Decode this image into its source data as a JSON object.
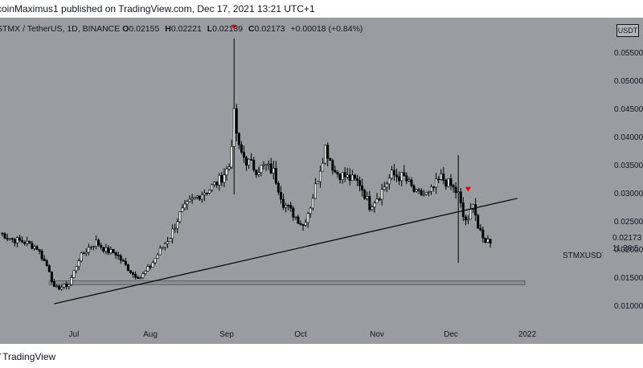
{
  "header": {
    "published": "coinMaximus1 published on TradingView.com, Dec 17, 2021 13:21 UTC+1"
  },
  "legend": {
    "symbol": "STMX / TetherUS, 1D, BINANCE",
    "o_label": "O",
    "o_value": "0.02155",
    "h_label": "H",
    "h_value": "0.02221",
    "l_label": "L",
    "l_value": "0.02139",
    "c_label": "C",
    "c_value": "0.02173",
    "change": "+0.00018 (+0.84%)"
  },
  "price_panel": {
    "currency": "USDT",
    "ticker": "STMXUSDT",
    "last_price": "0.02173",
    "countdown": "11:38:5"
  },
  "footer": {
    "brand": "TradingView"
  },
  "colors": {
    "background": "#9a9ca1",
    "candle": "#000000",
    "marker": "#e50000",
    "zone": "#8a8d93"
  },
  "chart_data": {
    "type": "candlestick",
    "symbol": "STMX / TetherUS",
    "interval": "1D",
    "exchange": "BINANCE",
    "x_tick_labels": [
      "Jul",
      "Aug",
      "Sep",
      "Oct",
      "Nov",
      "Dec",
      "2022"
    ],
    "y_tick_labels": [
      "0.01000",
      "0.01500",
      "0.02000",
      "0.02500",
      "0.03000",
      "0.03500",
      "0.04000",
      "0.04500",
      "0.05000",
      "0.05500"
    ],
    "y_ticks": [
      0.01,
      0.015,
      0.02,
      0.025,
      0.03,
      0.035,
      0.04,
      0.045,
      0.05,
      0.055
    ],
    "ylim": [
      0.0065,
      0.0615
    ],
    "x_range": [
      "2021-06-01",
      "2022-01-31"
    ],
    "grid": false,
    "series_closes": [
      [
        "2021-06-01",
        0.0231
      ],
      [
        "2021-06-06",
        0.022
      ],
      [
        "2021-06-11",
        0.0215
      ],
      [
        "2021-06-16",
        0.0205
      ],
      [
        "2021-06-21",
        0.0165
      ],
      [
        "2021-06-23",
        0.0132
      ],
      [
        "2021-06-26",
        0.0135
      ],
      [
        "2021-06-29",
        0.014
      ],
      [
        "2021-07-03",
        0.0185
      ],
      [
        "2021-07-07",
        0.0205
      ],
      [
        "2021-07-10",
        0.0215
      ],
      [
        "2021-07-14",
        0.02
      ],
      [
        "2021-07-18",
        0.0195
      ],
      [
        "2021-07-21",
        0.0178
      ],
      [
        "2021-07-25",
        0.0158
      ],
      [
        "2021-07-28",
        0.0152
      ],
      [
        "2021-08-01",
        0.0172
      ],
      [
        "2021-08-05",
        0.02
      ],
      [
        "2021-08-09",
        0.0225
      ],
      [
        "2021-08-13",
        0.0265
      ],
      [
        "2021-08-17",
        0.0285
      ],
      [
        "2021-08-21",
        0.03
      ],
      [
        "2021-08-25",
        0.031
      ],
      [
        "2021-08-29",
        0.0325
      ],
      [
        "2021-09-02",
        0.035
      ],
      [
        "2021-09-04",
        0.044
      ],
      [
        "2021-09-06",
        0.038
      ],
      [
        "2021-09-09",
        0.036
      ],
      [
        "2021-09-13",
        0.0345
      ],
      [
        "2021-09-17",
        0.035
      ],
      [
        "2021-09-20",
        0.034
      ],
      [
        "2021-09-24",
        0.0285
      ],
      [
        "2021-09-28",
        0.0265
      ],
      [
        "2021-10-02",
        0.0245
      ],
      [
        "2021-10-05",
        0.028
      ],
      [
        "2021-10-08",
        0.033
      ],
      [
        "2021-10-11",
        0.0385
      ],
      [
        "2021-10-15",
        0.034
      ],
      [
        "2021-10-20",
        0.033
      ],
      [
        "2021-10-25",
        0.032
      ],
      [
        "2021-10-29",
        0.028
      ],
      [
        "2021-11-02",
        0.03
      ],
      [
        "2021-11-07",
        0.0335
      ],
      [
        "2021-11-12",
        0.033
      ],
      [
        "2021-11-17",
        0.03
      ],
      [
        "2021-11-22",
        0.03
      ],
      [
        "2021-11-27",
        0.033
      ],
      [
        "2021-12-01",
        0.0315
      ],
      [
        "2021-12-04",
        0.03
      ],
      [
        "2021-12-06",
        0.026
      ],
      [
        "2021-12-08",
        0.025
      ],
      [
        "2021-12-10",
        0.029
      ],
      [
        "2021-12-12",
        0.024
      ],
      [
        "2021-12-14",
        0.022
      ],
      [
        "2021-12-17",
        0.0217
      ]
    ],
    "spikes": [
      {
        "date": "2021-09-04",
        "high": 0.0578,
        "low": 0.03
      },
      {
        "date": "2021-12-04",
        "high": 0.037,
        "low": 0.0178
      }
    ],
    "trendline": [
      [
        "2021-06-23",
        0.0105
      ],
      [
        "2021-12-28",
        0.0293
      ]
    ],
    "support_zone": {
      "x_from": "2021-06-21",
      "x_to": "2021-12-31",
      "y_from": 0.0139,
      "y_to": 0.0146
    },
    "markers": [
      {
        "date": "2021-09-04",
        "price": 0.0598,
        "type": "down-triangle"
      },
      {
        "date": "2021-12-08",
        "price": 0.0309,
        "type": "down-triangle"
      }
    ],
    "last_price": 0.02173
  }
}
